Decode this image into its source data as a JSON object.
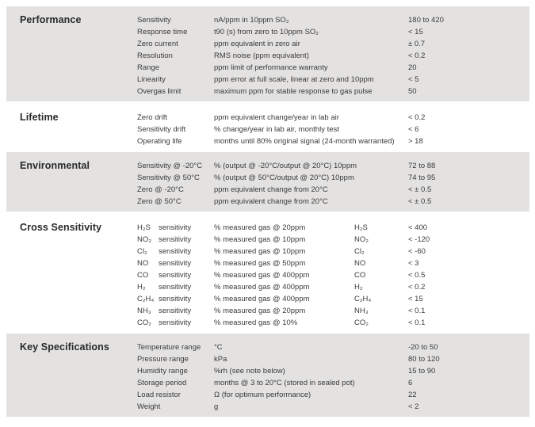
{
  "colors": {
    "band": "#e3e2e1",
    "text": "#3a3a3c",
    "heading": "#29292b",
    "page_bg": "#ffffff"
  },
  "sections": [
    {
      "title": "Performance",
      "shaded": true,
      "rows": [
        {
          "param": "Sensitivity",
          "desc": "nA/ppm in 10ppm SO₂",
          "value": "180 to 420"
        },
        {
          "param": "Response time",
          "desc": "t90 (s) from zero to 10ppm SO₂",
          "value": "< 15"
        },
        {
          "param": "Zero current",
          "desc": "ppm equivalent in zero air",
          "value": "± 0.7"
        },
        {
          "param": "Resolution",
          "desc": "RMS noise (ppm equivalent)",
          "value": "< 0.2"
        },
        {
          "param": "Range",
          "desc": "ppm limit of performance warranty",
          "value": "20"
        },
        {
          "param": "Linearity",
          "desc": "ppm error at full scale, linear at zero and 10ppm",
          "value": "< 5"
        },
        {
          "param": "Overgas limit",
          "desc": "maximum ppm for stable response to gas pulse",
          "value": "50"
        }
      ]
    },
    {
      "title": "Lifetime",
      "shaded": false,
      "rows": [
        {
          "param": "Zero drift",
          "desc": "ppm equivalent change/year in lab air",
          "value": "< 0.2"
        },
        {
          "param": "Sensitivity drift",
          "desc": "% change/year in lab air, monthly test",
          "value": "< 6"
        },
        {
          "param": "Operating life",
          "desc": "months until 80% original signal (24-month warranted)",
          "value": "> 18"
        }
      ]
    },
    {
      "title": "Environmental",
      "shaded": true,
      "rows": [
        {
          "param": "Sensitivity @ -20°C",
          "desc": "% (output @ -20°C/output @ 20°C) 10ppm",
          "value": "72 to 88"
        },
        {
          "param": "Sensitivity @ 50°C",
          "desc": "% (output @ 50°C/output @ 20°C) 10ppm",
          "value": "74 to 95"
        },
        {
          "param": "Zero @ -20°C",
          "desc": "ppm equivalent change from 20°C",
          "value": "< ± 0.5"
        },
        {
          "param": "Zero @ 50°C",
          "desc": "ppm equivalent change from 20°C",
          "value": "< ± 0.5"
        }
      ]
    },
    {
      "title": "Cross Sensitivity",
      "shaded": false,
      "rows": [
        {
          "param": "H₂S",
          "param2": "sensitivity",
          "desc": "% measured gas @ 20ppm",
          "gas": "H₂S",
          "value": "< 400"
        },
        {
          "param": "NO₂",
          "param2": "sensitivity",
          "desc": "% measured gas @ 10ppm",
          "gas": "NO₂",
          "value": "< -120"
        },
        {
          "param": "Cl₂",
          "param2": "sensitivity",
          "desc": "% measured gas @ 10ppm",
          "gas": "Cl₂",
          "value": "< -60"
        },
        {
          "param": "NO",
          "param2": "sensitivity",
          "desc": "% measured gas @ 50ppm",
          "gas": "NO",
          "value": "< 3"
        },
        {
          "param": "CO",
          "param2": "sensitivity",
          "desc": "% measured gas @ 400ppm",
          "gas": "CO",
          "value": "< 0.5"
        },
        {
          "param": "H₂",
          "param2": "sensitivity",
          "desc": "% measured gas @ 400ppm",
          "gas": "H₂",
          "value": "< 0.2"
        },
        {
          "param": "C₂H₄",
          "param2": "sensitivity",
          "desc": "% measured gas @ 400ppm",
          "gas": "C₂H₄",
          "value": "< 15"
        },
        {
          "param": "NH₃",
          "param2": "sensitivity",
          "desc": "% measured gas @ 20ppm",
          "gas": "NH₃",
          "value": "< 0.1"
        },
        {
          "param": "CO₂",
          "param2": "sensitivity",
          "desc": "% measured gas @ 10%",
          "gas": "CO₂",
          "value": "< 0.1"
        }
      ]
    },
    {
      "title": "Key Specifications",
      "shaded": true,
      "rows": [
        {
          "param": "Temperature range",
          "desc": "°C",
          "value": "-20 to 50"
        },
        {
          "param": "Pressure range",
          "desc": "kPa",
          "value": "80 to 120"
        },
        {
          "param": "Humidity range",
          "desc": "%rh (see note below)",
          "value": "15 to 90"
        },
        {
          "param": "Storage period",
          "desc": "months @ 3 to 20°C (stored in sealed pot)",
          "value": "6"
        },
        {
          "param": "Load resistor",
          "desc": "Ω (for optimum performance)",
          "value": "22"
        },
        {
          "param": "Weight",
          "desc": "g",
          "value": "< 2"
        }
      ]
    }
  ]
}
